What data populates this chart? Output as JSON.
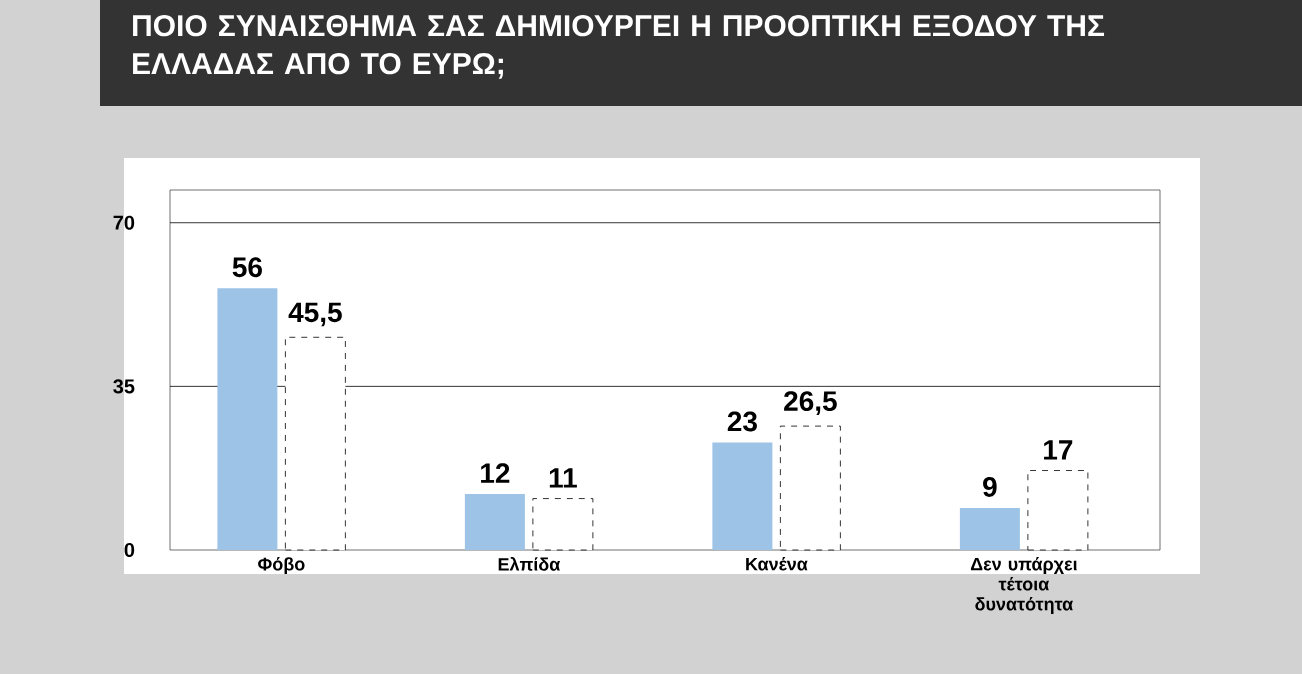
{
  "chart_data": {
    "type": "bar",
    "title": "ΠΟΙΟ ΣΥΝΑΙΣΘΗΜΑ ΣΑΣ ΔΗΜΙΟΥΡΓΕΙ Η ΠΡΟΟΠΤΙΚΗ ΕΞΟΔΟΥ ΤΗΣ ΕΛΛΑΔΑΣ ΑΠΟ ΤΟ ΕΥΡΩ;",
    "categories": [
      "Φόβο",
      "Ελπίδα",
      "Κανένα",
      "Δεν υπάρχει τέτοια δυνατότητα"
    ],
    "series": [
      {
        "color": "#9dc3e6",
        "values": [
          56,
          12,
          23,
          9
        ],
        "value_labels": [
          "56",
          "12",
          "23",
          "9"
        ]
      },
      {
        "color": "#ffffff",
        "line_style": "dashed",
        "values": [
          45.5,
          11,
          26.5,
          17
        ],
        "value_labels": [
          "45,5",
          "11",
          "26,5",
          "17"
        ]
      }
    ],
    "ylim": [
      0,
      77
    ],
    "yticks": [
      0,
      35,
      70
    ],
    "grid": "y"
  }
}
